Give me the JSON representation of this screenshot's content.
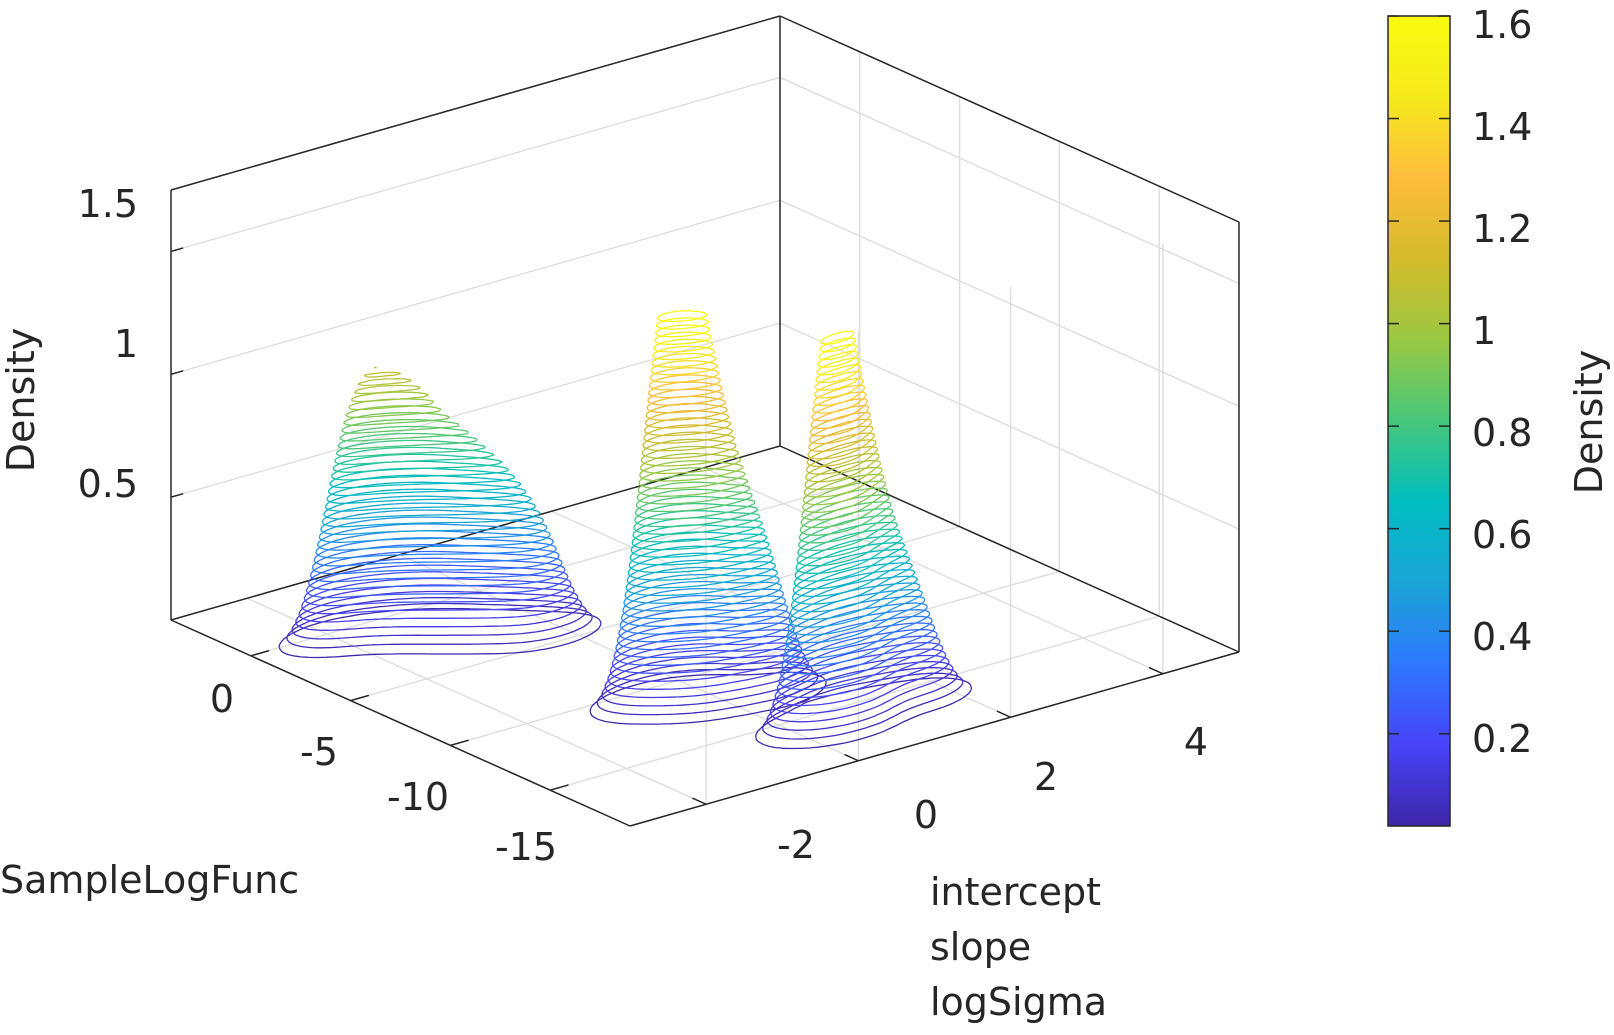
{
  "chart_data": {
    "type": "contour3",
    "title": "",
    "zlabel": "Density",
    "xlabel": "SampleLogFunc",
    "ylabel_lines": [
      "intercept",
      "slope",
      "logSigma"
    ],
    "x_ticks": [
      "0",
      "-5",
      "-10",
      "-15"
    ],
    "y_ticks": [
      "-2",
      "0",
      "2",
      "4"
    ],
    "z_ticks": [
      "0.5",
      "1",
      "1.5"
    ],
    "xlim": [
      -19,
      4
    ],
    "ylim": [
      -3,
      5
    ],
    "zlim": [
      0,
      1.75
    ],
    "grid": true,
    "colorbar": {
      "label": "Density",
      "ticks": [
        "0.2",
        "0.4",
        "0.6",
        "0.8",
        "1",
        "1.2",
        "1.4",
        "1.6"
      ],
      "tick_values": [
        0.2,
        0.4,
        0.6,
        0.8,
        1.0,
        1.2,
        1.4,
        1.6
      ],
      "range": [
        0.02,
        1.6
      ],
      "colormap": [
        "#3e26a8",
        "#4743f8",
        "#2e78fe",
        "#1aa4d6",
        "#00bec0",
        "#46c77a",
        "#9ac843",
        "#d4bb2b",
        "#fdbd3c",
        "#f5ea1c",
        "#f9fb0e"
      ]
    },
    "series": [
      {
        "peaks": [
          {
            "x": -1.0,
            "y": -2.0,
            "z": 0.73
          },
          {
            "x": -1.5,
            "y": -1.6,
            "z": 0.69
          },
          {
            "x": -2.2,
            "y": -1.3,
            "z": 0.67
          },
          {
            "x": -3.0,
            "y": -1.0,
            "z": 0.6
          },
          {
            "x": -3.8,
            "y": -0.7,
            "z": 0.5
          },
          {
            "x": -4.6,
            "y": -0.4,
            "z": 0.38
          },
          {
            "x": -11.5,
            "y": -0.6,
            "z": 1.18
          },
          {
            "x": -12.0,
            "y": -0.4,
            "z": 0.9
          },
          {
            "x": -12.6,
            "y": -0.2,
            "z": 0.75
          },
          {
            "x": -13.0,
            "y": 0.3,
            "z": 0.55
          },
          {
            "x": -16.5,
            "y": 0.3,
            "z": 1.6
          },
          {
            "x": -16.0,
            "y": 0.8,
            "z": 0.95
          },
          {
            "x": -16.2,
            "y": 1.4,
            "z": 0.45
          }
        ]
      }
    ]
  }
}
